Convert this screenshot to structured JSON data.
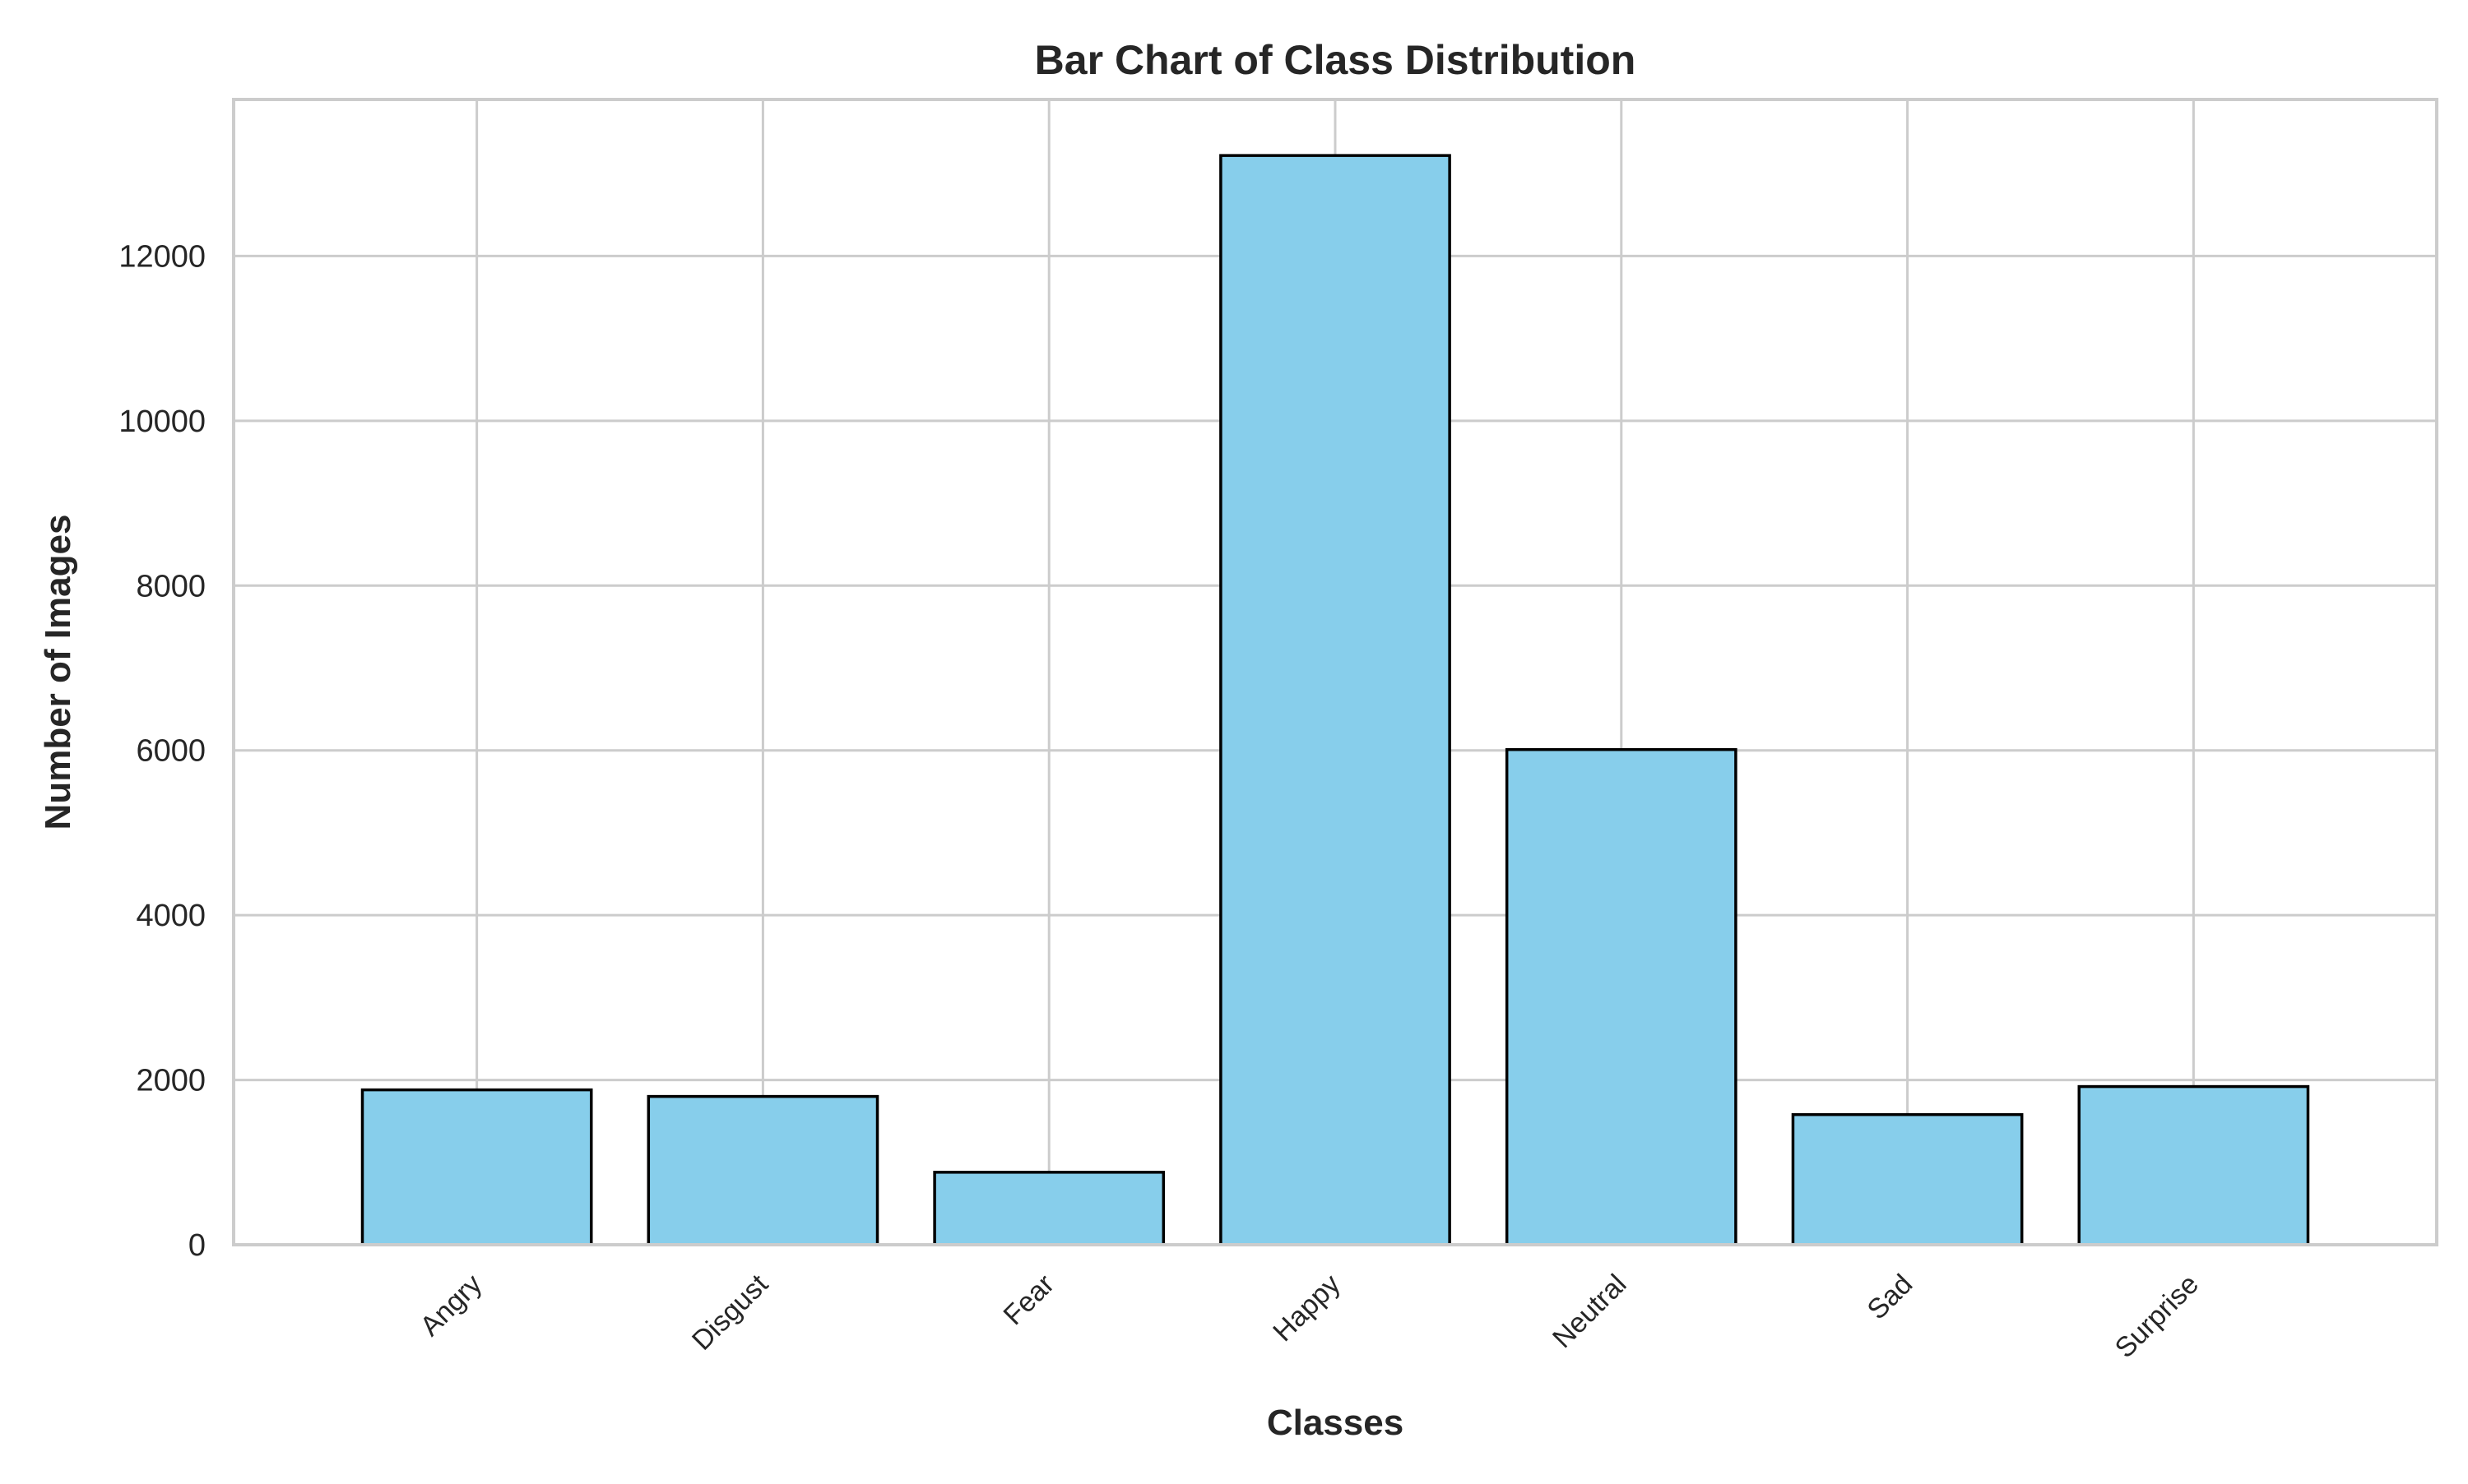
{
  "chart_data": {
    "type": "bar",
    "title": "Bar Chart of Class Distribution",
    "xlabel": "Classes",
    "ylabel": "Number of Images",
    "categories": [
      "Angry",
      "Disgust",
      "Fear",
      "Happy",
      "Neutral",
      "Sad",
      "Surprise"
    ],
    "values": [
      1880,
      1800,
      880,
      13220,
      6010,
      1580,
      1920
    ],
    "ylim": [
      0,
      13900
    ],
    "yticks": [
      0,
      2000,
      4000,
      6000,
      8000,
      10000,
      12000
    ],
    "grid": true,
    "bar_color": "#87ceeb",
    "edge_color": "#000000"
  }
}
